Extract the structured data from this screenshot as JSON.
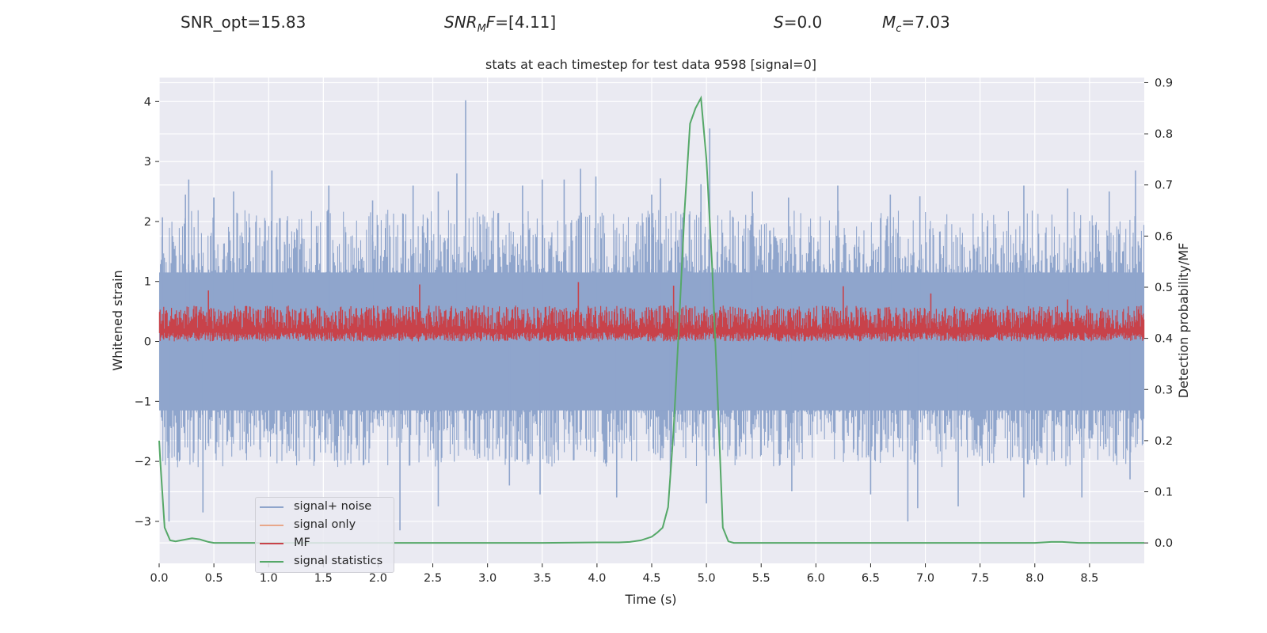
{
  "header": {
    "snr_opt": "SNR_opt=15.83",
    "snr_mf_base": "SNR",
    "snr_mf_sub": "M",
    "snr_mf_tail": "F",
    "snr_mf_value": "=[4.11]",
    "s_symbol": "S",
    "s_value": "=0.0",
    "mc_symbol": "M",
    "mc_sub": "c",
    "mc_value": "=7.03"
  },
  "chart_data": {
    "type": "line",
    "title": "stats at each timestep for test data 9598 [signal=0]",
    "xlabel": "Time (s)",
    "ylabel": "Whitened strain",
    "y2label": "Detection probability/MF",
    "xlim": [
      0,
      9.0
    ],
    "ylim": [
      -3.7,
      4.4
    ],
    "y2lim": [
      -0.04,
      0.91
    ],
    "xticks": [
      "0.0",
      "0.5",
      "1.0",
      "1.5",
      "2.0",
      "2.5",
      "3.0",
      "3.5",
      "4.0",
      "4.5",
      "5.0",
      "5.5",
      "6.0",
      "6.5",
      "7.0",
      "7.5",
      "8.0",
      "8.5"
    ],
    "yticks": [
      "4",
      "3",
      "2",
      "1",
      "0",
      "−1",
      "−2",
      "−3"
    ],
    "ytick_values": [
      4,
      3,
      2,
      1,
      0,
      -1,
      -2,
      -3
    ],
    "y2ticks": [
      "0.9",
      "0.8",
      "0.7",
      "0.6",
      "0.5",
      "0.4",
      "0.3",
      "0.2",
      "0.1",
      "0.0"
    ],
    "y2tick_values": [
      0.9,
      0.8,
      0.7,
      0.6,
      0.5,
      0.4,
      0.3,
      0.2,
      0.1,
      0.0
    ],
    "grid": true,
    "legend_position": "lower-left",
    "colors": {
      "noise": "#8fa5cc",
      "signal_only": "#e8a78a",
      "mf": "#c8424a",
      "stats": "#55a868",
      "background": "#eaeaf2",
      "grid": "#ffffff"
    },
    "series": [
      {
        "name": "signal+ noise",
        "color": "#8fa5cc",
        "note_range": [
          -3.3,
          4.02
        ],
        "peaks": [
          [
            0.03,
            2.07
          ],
          [
            0.24,
            2.45
          ],
          [
            0.27,
            2.7
          ],
          [
            0.5,
            2.4
          ],
          [
            0.5,
            2.4
          ],
          [
            0.68,
            2.5
          ],
          [
            1.03,
            2.85
          ],
          [
            1.55,
            2.6
          ],
          [
            1.95,
            2.35
          ],
          [
            2.32,
            2.6
          ],
          [
            2.55,
            2.5
          ],
          [
            2.72,
            2.8
          ],
          [
            2.8,
            4.02
          ],
          [
            3.32,
            2.6
          ],
          [
            3.5,
            2.7
          ],
          [
            3.7,
            2.7
          ],
          [
            3.85,
            2.88
          ],
          [
            3.99,
            2.75
          ],
          [
            4.5,
            2.45
          ],
          [
            4.58,
            2.72
          ],
          [
            4.95,
            2.62
          ],
          [
            5.03,
            3.55
          ],
          [
            5.42,
            2.5
          ],
          [
            5.75,
            2.4
          ],
          [
            6.2,
            2.6
          ],
          [
            6.68,
            2.45
          ],
          [
            6.95,
            2.42
          ],
          [
            7.9,
            2.6
          ],
          [
            8.3,
            2.55
          ],
          [
            8.68,
            2.5
          ],
          [
            8.92,
            2.85
          ]
        ],
        "troughs": [
          [
            0.09,
            -3.0
          ],
          [
            0.4,
            -2.85
          ],
          [
            2.2,
            -3.15
          ],
          [
            2.55,
            -2.75
          ],
          [
            3.2,
            -2.4
          ],
          [
            3.48,
            -2.55
          ],
          [
            4.18,
            -2.6
          ],
          [
            4.67,
            -2.2
          ],
          [
            5.0,
            -2.7
          ],
          [
            5.78,
            -2.5
          ],
          [
            6.5,
            -2.55
          ],
          [
            6.84,
            -3.0
          ],
          [
            6.93,
            -2.78
          ],
          [
            7.3,
            -2.75
          ],
          [
            7.9,
            -2.6
          ],
          [
            8.43,
            -2.6
          ],
          [
            8.87,
            -2.3
          ]
        ]
      },
      {
        "name": "signal only",
        "color": "#e8a78a",
        "values": []
      },
      {
        "name": "MF",
        "color": "#c8424a",
        "baseline": 0.0,
        "typical_top": 0.6,
        "peaks": [
          [
            0.45,
            0.85
          ],
          [
            2.38,
            0.95
          ],
          [
            3.83,
            0.99
          ],
          [
            4.7,
            0.93
          ],
          [
            6.25,
            0.92
          ],
          [
            7.05,
            0.8
          ],
          [
            8.3,
            0.7
          ]
        ]
      },
      {
        "name": "signal statistics",
        "color": "#55a868",
        "axis": "right",
        "x": [
          0.0,
          0.01,
          0.05,
          0.1,
          0.15,
          0.2,
          0.3,
          0.37,
          0.45,
          0.5,
          0.6,
          1.0,
          2.0,
          3.0,
          3.5,
          4.0,
          4.2,
          4.3,
          4.4,
          4.5,
          4.55,
          4.6,
          4.65,
          4.7,
          4.75,
          4.8,
          4.85,
          4.9,
          4.95,
          5.0,
          5.05,
          5.1,
          5.15,
          5.2,
          5.25,
          5.3,
          6.0,
          7.0,
          8.0,
          8.15,
          8.25,
          8.4,
          9.0
        ],
        "y": [
          0.2,
          0.16,
          0.03,
          0.005,
          0.003,
          0.005,
          0.009,
          0.007,
          0.002,
          0.0,
          0.0,
          0.0,
          0.0,
          0.0,
          0.0,
          0.001,
          0.001,
          0.002,
          0.005,
          0.012,
          0.02,
          0.03,
          0.07,
          0.22,
          0.43,
          0.65,
          0.82,
          0.85,
          0.87,
          0.75,
          0.55,
          0.3,
          0.03,
          0.003,
          0.0,
          0.0,
          0.0,
          0.0,
          0.0,
          0.002,
          0.002,
          0.0,
          0.0
        ]
      }
    ]
  },
  "legend": {
    "items": [
      {
        "label": "signal+ noise",
        "color": "#8fa5cc"
      },
      {
        "label": "signal only",
        "color": "#e8a78a"
      },
      {
        "label": "MF",
        "color": "#c8424a"
      },
      {
        "label": "signal statistics",
        "color": "#55a868"
      }
    ]
  }
}
